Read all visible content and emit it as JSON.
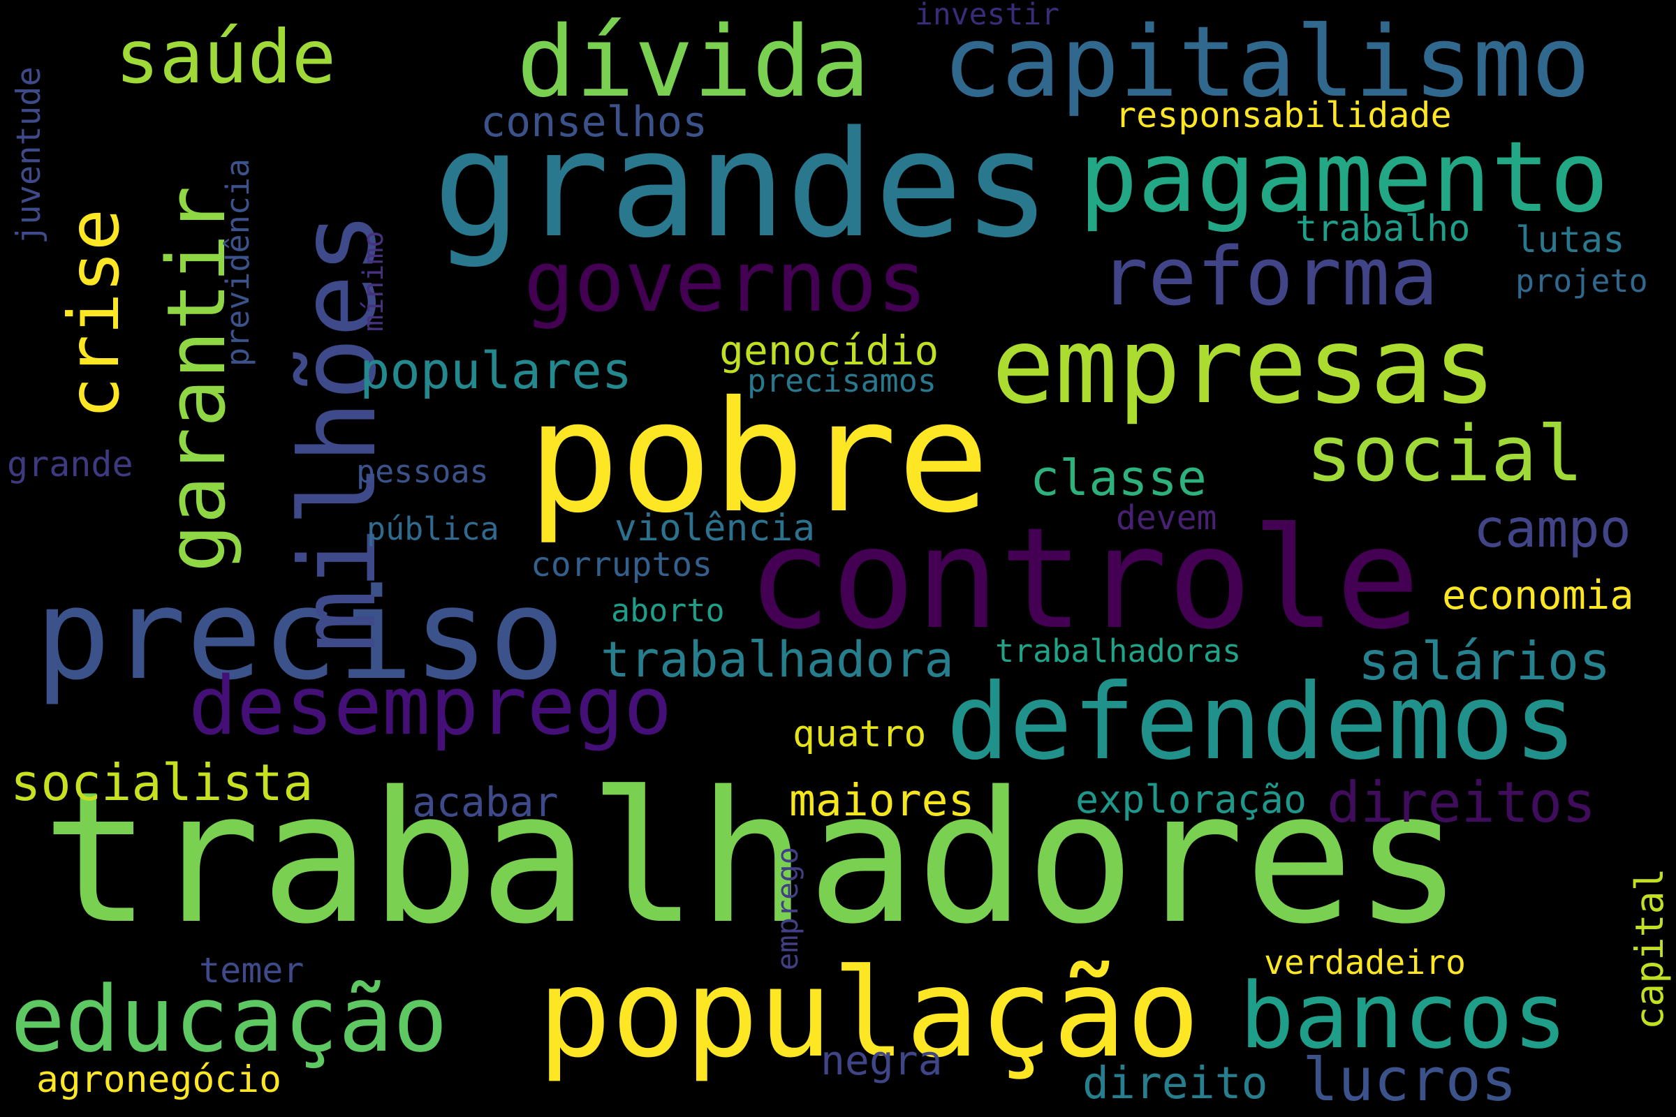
{
  "words": [
    {
      "text": "trabalhadores",
      "color": "#7ad151"
    },
    {
      "text": "pobre",
      "color": "#fde725"
    },
    {
      "text": "controle",
      "color": "#440154"
    },
    {
      "text": "grandes",
      "color": "#2a788e"
    },
    {
      "text": "população",
      "color": "#fde725"
    },
    {
      "text": "preciso",
      "color": "#3b528b"
    },
    {
      "text": "empresas",
      "color": "#addc30"
    },
    {
      "text": "defendemos",
      "color": "#21918c"
    },
    {
      "text": "pagamento",
      "color": "#22a884"
    },
    {
      "text": "capitalismo",
      "color": "#31688e"
    },
    {
      "text": "milhões",
      "color": "#3e4a89"
    },
    {
      "text": "garantir",
      "color": "#8fd744"
    },
    {
      "text": "dívida",
      "color": "#7ad151"
    },
    {
      "text": "educação",
      "color": "#5ec962"
    },
    {
      "text": "bancos",
      "color": "#1f9e89"
    },
    {
      "text": "governos",
      "color": "#440154"
    },
    {
      "text": "desemprego",
      "color": "#440f76"
    },
    {
      "text": "reforma",
      "color": "#414487"
    },
    {
      "text": "social",
      "color": "#a0da39"
    },
    {
      "text": "crise",
      "color": "#fde725"
    },
    {
      "text": "saúde",
      "color": "#a0da39"
    },
    {
      "text": "direitos",
      "color": "#3f0d5b"
    },
    {
      "text": "socialista",
      "color": "#c7e020"
    },
    {
      "text": "lucros",
      "color": "#3b528b"
    },
    {
      "text": "populares",
      "color": "#23898e"
    },
    {
      "text": "classe",
      "color": "#2db27d"
    },
    {
      "text": "campo",
      "color": "#414487"
    },
    {
      "text": "salários",
      "color": "#26828e"
    },
    {
      "text": "trabalhadora",
      "color": "#277f8e"
    },
    {
      "text": "economia",
      "color": "#fde725"
    },
    {
      "text": "maiores",
      "color": "#f6e620"
    },
    {
      "text": "genocídio",
      "color": "#c2df23"
    },
    {
      "text": "acabar",
      "color": "#3e4a89"
    },
    {
      "text": "exploração",
      "color": "#1f978b"
    },
    {
      "text": "negra",
      "color": "#404588"
    },
    {
      "text": "direito",
      "color": "#277f8e"
    },
    {
      "text": "quatro",
      "color": "#e5e419"
    },
    {
      "text": "conselhos",
      "color": "#3b528b"
    },
    {
      "text": "responsabilidade",
      "color": "#fde725"
    },
    {
      "text": "trabalho",
      "color": "#1f9e89"
    },
    {
      "text": "lutas",
      "color": "#2a788e"
    },
    {
      "text": "projeto",
      "color": "#31688e"
    },
    {
      "text": "precisamos",
      "color": "#2a788e"
    },
    {
      "text": "pessoas",
      "color": "#3b528b"
    },
    {
      "text": "pública",
      "color": "#306a8e"
    },
    {
      "text": "violência",
      "color": "#2c728e"
    },
    {
      "text": "devem",
      "color": "#482173"
    },
    {
      "text": "corruptos",
      "color": "#34608d"
    },
    {
      "text": "aborto",
      "color": "#1f9e89"
    },
    {
      "text": "trabalhadoras",
      "color": "#20a386"
    },
    {
      "text": "grande",
      "color": "#3e3a80"
    },
    {
      "text": "investir",
      "color": "#3a2c79"
    },
    {
      "text": "temer",
      "color": "#3e4a89"
    },
    {
      "text": "verdadeiro",
      "color": "#fde725"
    },
    {
      "text": "agronegócio",
      "color": "#fde725"
    },
    {
      "text": "juventude",
      "color": "#3e4a89"
    },
    {
      "text": "previdência",
      "color": "#3b528b"
    },
    {
      "text": "mínimo",
      "color": "#46327e"
    },
    {
      "text": "emprego",
      "color": "#423f85"
    },
    {
      "text": "capital",
      "color": "#c2df23"
    }
  ]
}
